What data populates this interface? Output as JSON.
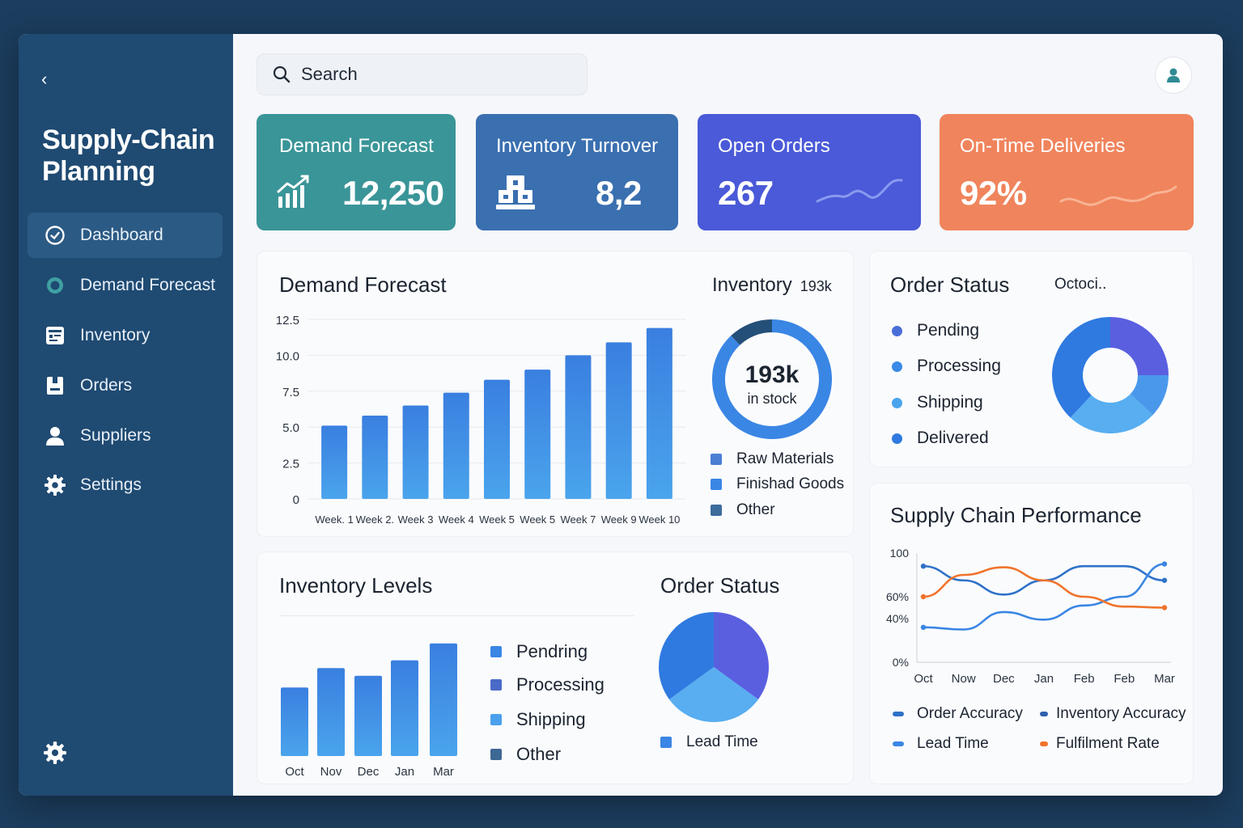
{
  "sidebar": {
    "collapse_glyph": "‹",
    "title": "Supply-Chain Planning",
    "items": [
      {
        "label": "Dashboard",
        "icon": "dashboard-icon",
        "active": true
      },
      {
        "label": "Demand Forecast",
        "icon": "forecast-icon",
        "active": false
      },
      {
        "label": "Inventory",
        "icon": "inventory-icon",
        "active": false
      },
      {
        "label": "Orders",
        "icon": "orders-icon",
        "active": false
      },
      {
        "label": "Suppliers",
        "icon": "user-icon",
        "active": false
      },
      {
        "label": "Settings",
        "icon": "gear-icon",
        "active": false
      }
    ]
  },
  "search": {
    "placeholder": "Search"
  },
  "kpis": [
    {
      "title": "Demand Forecast",
      "value": "12,250",
      "icon": "bar-chart-icon",
      "color": "#3a9598"
    },
    {
      "title": "Inventory Turnover",
      "value": "8,2",
      "icon": "pallet-icon",
      "color": "#3a6fb0"
    },
    {
      "title": "Open Orders",
      "value": "267",
      "icon": "sparkline-icon",
      "color": "#4a5ad8"
    },
    {
      "title": "On-Time Deliveries",
      "value": "92%",
      "icon": "sparkline-icon",
      "color": "#f0845c"
    }
  ],
  "demand_card": {
    "title": "Demand Forecast",
    "inventory_label": "Inventory",
    "inventory_value": "193k",
    "donut_value": "193k",
    "donut_sub": "in stock",
    "legend": [
      {
        "label": "Raw Materials",
        "color": "#4a7fd4"
      },
      {
        "label": "Finishad Goods",
        "color": "#3a86e4"
      },
      {
        "label": "Other",
        "color": "#3d6c9c"
      }
    ]
  },
  "order_status_card": {
    "title": "Order Status",
    "subtitle": "Octoci..",
    "legend": [
      {
        "label": "Pending",
        "color": "#4a6ed8"
      },
      {
        "label": "Processing",
        "color": "#3a8ae6"
      },
      {
        "label": "Shipping",
        "color": "#4aa4ec"
      },
      {
        "label": "Delivered",
        "color": "#2f7ae0"
      }
    ]
  },
  "inventory_levels_card": {
    "title": "Inventory Levels",
    "legend": [
      {
        "label": "Pendring",
        "color": "#3a86e4"
      },
      {
        "label": "Processing",
        "color": "#4a6ac8"
      },
      {
        "label": "Shipping",
        "color": "#4aa0ec"
      },
      {
        "label": "Other",
        "color": "#3d6894"
      }
    ],
    "order_status_title": "Order Status",
    "order_status_legend": [
      {
        "label": "Lead Time",
        "color": "#3a86e4"
      }
    ]
  },
  "performance_card": {
    "title": "Supply Chain Performance",
    "legend": [
      {
        "label": "Order Accuracy",
        "color": "#2f72c8"
      },
      {
        "label": "Inventory Accuracy",
        "color": "#2f5fae"
      },
      {
        "label": "Lead Time",
        "color": "#3a86e4"
      },
      {
        "label": "Fulfilment Rate",
        "color": "#f0732c"
      }
    ]
  },
  "chart_data": [
    {
      "type": "bar",
      "title": "Demand Forecast",
      "categories": [
        "Week. 1",
        "Week 2.",
        "Week 3",
        "Week 4",
        "Week 5",
        "Week 5",
        "Week 7",
        "Week 9",
        "Week 10"
      ],
      "values": [
        5.1,
        5.8,
        6.5,
        7.4,
        8.3,
        9.0,
        10.0,
        10.9,
        11.9
      ],
      "yticks": [
        "0",
        "2.5",
        "5.0",
        "7.5",
        "10.0",
        "12.5"
      ],
      "ylim": [
        0,
        12.5
      ],
      "color": "#3a86e4"
    },
    {
      "type": "pie",
      "title": "Inventory",
      "center_label": "193k",
      "values": [
        88,
        12
      ],
      "colors": [
        "#3a86e4",
        "#244f78"
      ]
    },
    {
      "type": "pie",
      "title": "Order Status",
      "categories": [
        "Pending",
        "Processing",
        "Shipping",
        "Delivered"
      ],
      "values": [
        25,
        12,
        25,
        38
      ],
      "colors": [
        "#5a5fe0",
        "#4a98ec",
        "#58aef0",
        "#2f7ae0"
      ]
    },
    {
      "type": "bar",
      "title": "Inventory Levels",
      "categories": [
        "Oct",
        "Nov",
        "Dec",
        "Jan",
        "Mar"
      ],
      "values": [
        53,
        68,
        62,
        74,
        87
      ],
      "ylim": [
        0,
        100
      ],
      "color": "#3a86e4"
    },
    {
      "type": "pie",
      "title": "Order Status",
      "values": [
        35,
        30,
        35
      ],
      "colors": [
        "#5a5fe0",
        "#58aef0",
        "#2f7ae0"
      ]
    },
    {
      "type": "line",
      "title": "Supply Chain Performance",
      "x": [
        "Oct",
        "Now",
        "Dec",
        "Jan",
        "Feb",
        "Feb",
        "Mar"
      ],
      "yticks": [
        "0%",
        "40%",
        "60%",
        "100"
      ],
      "ylim": [
        0,
        100
      ],
      "series": [
        {
          "name": "Order Accuracy",
          "color": "#2f72c8",
          "values": [
            88,
            75,
            62,
            75,
            88,
            88,
            75
          ]
        },
        {
          "name": "Inventory Accuracy",
          "color": "#3a86e4",
          "values": [
            32,
            30,
            46,
            39,
            52,
            60,
            90
          ]
        },
        {
          "name": "Fulfilment Rate",
          "color": "#f0732c",
          "values": [
            60,
            80,
            87,
            75,
            60,
            51,
            50
          ]
        }
      ]
    }
  ]
}
